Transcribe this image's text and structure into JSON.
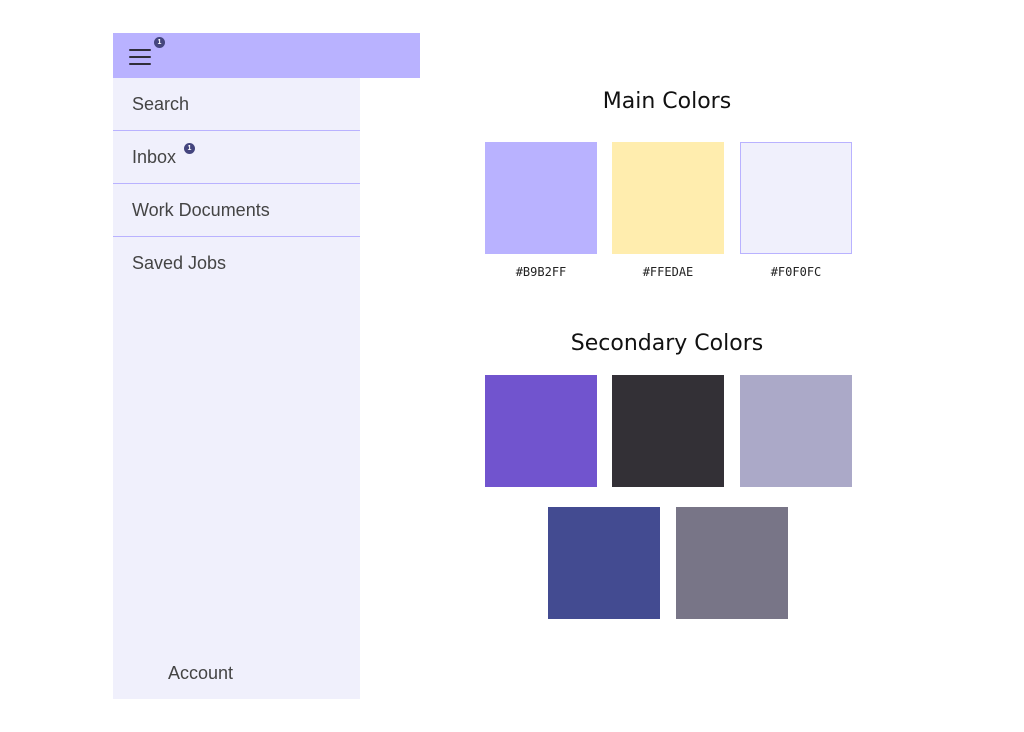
{
  "header": {
    "menu_badge": "1"
  },
  "sidebar": {
    "items": [
      {
        "label": "Search"
      },
      {
        "label": "Inbox",
        "badge": "1"
      },
      {
        "label": "Work Documents"
      },
      {
        "label": "Saved Jobs"
      }
    ],
    "account_label": "Account"
  },
  "main_colors": {
    "title": "Main Colors",
    "swatches": [
      {
        "hex": "#B9B2FF",
        "label": "#B9B2FF"
      },
      {
        "hex": "#FFEDAE",
        "label": "#FFEDAE"
      },
      {
        "hex": "#F0F0FC",
        "label": "#F0F0FC"
      }
    ]
  },
  "secondary_colors": {
    "title": "Secondary Colors",
    "swatches": [
      {
        "hex": "#7154CE"
      },
      {
        "hex": "#333036"
      },
      {
        "hex": "#ABA9C8"
      },
      {
        "hex": "#434B91"
      },
      {
        "hex": "#787587"
      }
    ]
  }
}
